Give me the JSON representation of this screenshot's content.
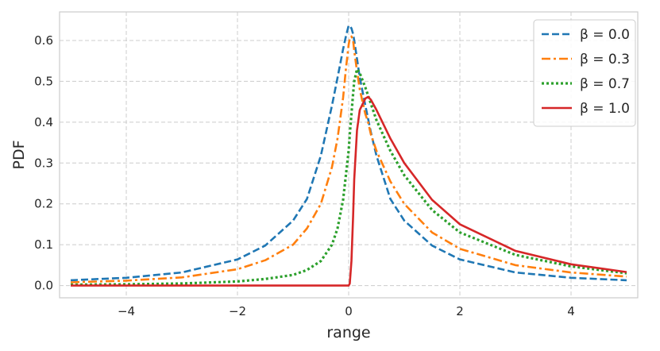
{
  "chart_data": {
    "type": "line",
    "xlabel": "range",
    "ylabel": "PDF",
    "xlim": [
      -5.2,
      5.2
    ],
    "ylim": [
      -0.03,
      0.67
    ],
    "xticks": [
      -4,
      -2,
      0,
      2,
      4
    ],
    "xtick_labels": [
      "−4",
      "−2",
      "0",
      "2",
      "4"
    ],
    "yticks": [
      0.0,
      0.1,
      0.2,
      0.3,
      0.4,
      0.5,
      0.6
    ],
    "ytick_labels": [
      "0.0",
      "0.1",
      "0.2",
      "0.3",
      "0.4",
      "0.5",
      "0.6"
    ],
    "grid": true,
    "legend_position": "top-right",
    "x": [
      -5.0,
      -4.0,
      -3.0,
      -2.0,
      -1.5,
      -1.0,
      -0.75,
      -0.5,
      -0.3,
      -0.2,
      -0.1,
      -0.05,
      0.0,
      0.02,
      0.05,
      0.08,
      0.1,
      0.15,
      0.2,
      0.3,
      0.35,
      0.4,
      0.5,
      0.75,
      1.0,
      1.5,
      2.0,
      3.0,
      4.0,
      5.0
    ],
    "series": [
      {
        "name": "β = 0.0",
        "color": "#1f77b4",
        "dash": "dashed",
        "values": [
          0.013,
          0.019,
          0.032,
          0.064,
          0.098,
          0.159,
          0.212,
          0.318,
          0.441,
          0.509,
          0.579,
          0.61,
          0.637,
          0.635,
          0.63,
          0.616,
          0.6,
          0.555,
          0.509,
          0.441,
          0.408,
          0.375,
          0.318,
          0.212,
          0.159,
          0.098,
          0.064,
          0.032,
          0.019,
          0.013
        ]
      },
      {
        "name": "β = 0.3",
        "color": "#ff7f0e",
        "dash": "dashdot",
        "values": [
          0.008,
          0.012,
          0.02,
          0.04,
          0.062,
          0.1,
          0.14,
          0.2,
          0.29,
          0.36,
          0.46,
          0.53,
          0.59,
          0.605,
          0.61,
          0.6,
          0.575,
          0.525,
          0.48,
          0.42,
          0.4,
          0.37,
          0.33,
          0.255,
          0.2,
          0.13,
          0.09,
          0.05,
          0.032,
          0.022
        ]
      },
      {
        "name": "β = 0.7",
        "color": "#2ca02c",
        "dash": "dotted",
        "values": [
          0.002,
          0.003,
          0.005,
          0.01,
          0.016,
          0.026,
          0.038,
          0.06,
          0.1,
          0.14,
          0.21,
          0.27,
          0.33,
          0.37,
          0.42,
          0.47,
          0.5,
          0.53,
          0.52,
          0.485,
          0.465,
          0.445,
          0.405,
          0.33,
          0.27,
          0.185,
          0.13,
          0.075,
          0.047,
          0.03
        ]
      },
      {
        "name": "β = 1.0",
        "color": "#d62728",
        "dash": "solid",
        "values": [
          0.0,
          0.0,
          0.0,
          0.0,
          0.0,
          0.0,
          0.0,
          0.0,
          0.0,
          0.0,
          0.0,
          0.0,
          0.0,
          0.005,
          0.06,
          0.17,
          0.26,
          0.38,
          0.43,
          0.458,
          0.462,
          0.455,
          0.43,
          0.36,
          0.3,
          0.21,
          0.15,
          0.085,
          0.052,
          0.033
        ]
      }
    ]
  }
}
